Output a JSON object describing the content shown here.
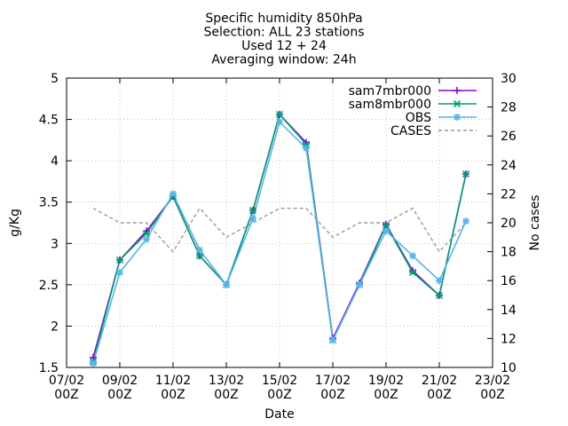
{
  "chart_data": {
    "type": "line",
    "title_lines": [
      "Specific humidity 850hPa",
      "Selection: ALL      23 stations",
      "Used 12 + 24",
      "Averaging window: 24h"
    ],
    "xlabel": "Date",
    "ylabel": "g/Kg",
    "y2label": "No cases",
    "ylim": [
      1.5,
      5
    ],
    "y2lim": [
      10,
      30
    ],
    "yticks": [
      "1.5",
      "2",
      "2.5",
      "3",
      "3.5",
      "4",
      "4.5",
      "5"
    ],
    "y2ticks": [
      "10",
      "12",
      "14",
      "16",
      "18",
      "20",
      "22",
      "24",
      "26",
      "28",
      "30"
    ],
    "xlim": [
      "2023-02-07 00",
      "2023-02-23 00"
    ],
    "xticks": [
      {
        "date": "07/02",
        "hour": "00Z"
      },
      {
        "date": "09/02",
        "hour": "00Z"
      },
      {
        "date": "11/02",
        "hour": "00Z"
      },
      {
        "date": "13/02",
        "hour": "00Z"
      },
      {
        "date": "15/02",
        "hour": "00Z"
      },
      {
        "date": "17/02",
        "hour": "00Z"
      },
      {
        "date": "19/02",
        "hour": "00Z"
      },
      {
        "date": "21/02",
        "hour": "00Z"
      },
      {
        "date": "23/02",
        "hour": "00Z"
      }
    ],
    "x": [
      "2023-02-08 00",
      "2023-02-09 00",
      "2023-02-10 00",
      "2023-02-11 00",
      "2023-02-12 00",
      "2023-02-13 00",
      "2023-02-14 00",
      "2023-02-15 00",
      "2023-02-16 00",
      "2023-02-17 00",
      "2023-02-18 00",
      "2023-02-19 00",
      "2023-02-20 00",
      "2023-02-21 00",
      "2023-02-22 00"
    ],
    "legend_position": "top-right",
    "grid": true,
    "series": [
      {
        "name": "sam7mbr000",
        "axis": "y",
        "color": "#9400d3",
        "marker": "plus",
        "values": [
          1.62,
          2.8,
          3.15,
          3.57,
          2.85,
          2.5,
          3.4,
          4.56,
          4.22,
          1.85,
          2.52,
          3.23,
          2.67,
          2.37,
          3.84
        ]
      },
      {
        "name": "sam8mbr000",
        "axis": "y",
        "color": "#009e73",
        "marker": "cross",
        "values": [
          1.57,
          2.8,
          3.12,
          3.57,
          2.85,
          2.5,
          3.4,
          4.56,
          4.2,
          1.83,
          2.5,
          3.22,
          2.65,
          2.37,
          3.84
        ]
      },
      {
        "name": "OBS",
        "axis": "y",
        "color": "#56b4e9",
        "marker": "star",
        "values": [
          1.55,
          2.65,
          3.05,
          3.6,
          2.92,
          2.5,
          3.3,
          4.47,
          4.15,
          1.83,
          2.5,
          3.15,
          2.85,
          2.55,
          3.27
        ]
      },
      {
        "name": "CASES",
        "axis": "y2",
        "color": "#999999",
        "dash": true,
        "values": [
          21,
          20,
          20,
          18,
          21,
          19,
          20,
          21,
          21,
          19,
          20,
          20,
          21,
          18,
          20
        ]
      }
    ]
  }
}
